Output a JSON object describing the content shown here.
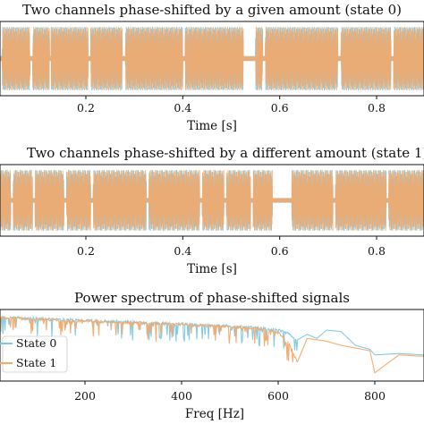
{
  "colors": {
    "state0": "#7ec8e3",
    "state1": "#f4a96a",
    "axis": "#111111",
    "background": "#ffffff"
  },
  "chart_data": [
    {
      "type": "line",
      "title": "Two channels phase-shifted by a given amount (state 0)",
      "xlabel": "Time [s]",
      "ylabel": "",
      "xlim": [
        0.0,
        0.9
      ],
      "xticks": [
        0.2,
        0.4,
        0.6,
        0.8
      ],
      "xtick_labels": [
        "0.2",
        "0.4",
        "0.6",
        "0.8"
      ],
      "ylim": [
        -1,
        1
      ],
      "grid": false,
      "series": [
        {
          "color": "#7ec8e3",
          "description": "channel 1 — bursts of high-frequency oscillation, full amplitude"
        },
        {
          "color": "#f4a96a",
          "description": "channel 2 — same bursts, phase-shifted"
        }
      ],
      "burst_gaps": [
        [
          0.02,
          0.027
        ],
        [
          0.085,
          0.09
        ],
        [
          0.125,
          0.128
        ],
        [
          0.205,
          0.21
        ],
        [
          0.275,
          0.282
        ],
        [
          0.4,
          0.405
        ],
        [
          0.525,
          0.55
        ],
        [
          0.565,
          0.57
        ],
        [
          0.72,
          0.727
        ],
        [
          0.83,
          0.835
        ]
      ]
    },
    {
      "type": "line",
      "title": "Two channels phase-shifted by a different amount (state 1)",
      "xlabel": "Time [s]",
      "ylabel": "",
      "xlim": [
        0.0,
        0.9
      ],
      "xticks": [
        0.2,
        0.4,
        0.6,
        0.8
      ],
      "xtick_labels": [
        "0.2",
        "0.4",
        "0.6",
        "0.8"
      ],
      "ylim": [
        -1,
        1
      ],
      "grid": false,
      "series": [
        {
          "color": "#7ec8e3",
          "description": "channel 1"
        },
        {
          "color": "#f4a96a",
          "description": "channel 2 — different phase shift"
        }
      ],
      "burst_gaps": [
        [
          0.0,
          0.012
        ],
        [
          0.045,
          0.05
        ],
        [
          0.09,
          0.095
        ],
        [
          0.155,
          0.16
        ],
        [
          0.21,
          0.215
        ],
        [
          0.325,
          0.33
        ],
        [
          0.435,
          0.44
        ],
        [
          0.485,
          0.49
        ],
        [
          0.54,
          0.545
        ],
        [
          0.585,
          0.625
        ],
        [
          0.71,
          0.715
        ],
        [
          0.82,
          0.825
        ]
      ]
    },
    {
      "type": "line",
      "title": "Power spectrum of phase-shifted signals",
      "xlabel": "Freq [Hz]",
      "ylabel": "",
      "xlim": [
        0,
        1000
      ],
      "xticks": [
        200,
        400,
        600,
        800
      ],
      "xtick_labels": [
        "200",
        "400",
        "600",
        "800"
      ],
      "grid": false,
      "legend": {
        "position": "left",
        "entries": [
          "State 0",
          "State 1"
        ]
      },
      "series": [
        {
          "name": "State 0",
          "color": "#7ec8e3",
          "x": [
            0,
            100,
            200,
            300,
            400,
            500,
            560,
            600,
            625,
            640,
            660,
            680,
            700,
            730,
            760,
            790,
            800,
            850,
            900,
            1000
          ],
          "y": [
            -0.2,
            -0.8,
            -1.5,
            -2.0,
            -2.8,
            -3.5,
            -4.2,
            -5.0,
            -6.5,
            -9.0,
            -7.0,
            -8.5,
            -5.5,
            -6.0,
            -11.0,
            -12.5,
            -14.5,
            -14.0,
            -14.5,
            -14.8
          ]
        },
        {
          "name": "State 1",
          "color": "#f4a96a",
          "x": [
            0,
            100,
            200,
            300,
            400,
            500,
            560,
            600,
            625,
            640,
            660,
            680,
            700,
            730,
            760,
            790,
            800,
            850,
            900,
            1000
          ],
          "y": [
            -0.5,
            -1.0,
            -1.8,
            -2.3,
            -3.0,
            -3.8,
            -4.5,
            -6.0,
            -10.5,
            -17.0,
            -8.5,
            -9.0,
            -9.5,
            -11.0,
            -12.0,
            -13.0,
            -21.0,
            -14.5,
            -15.0,
            -15.2
          ]
        }
      ]
    }
  ]
}
